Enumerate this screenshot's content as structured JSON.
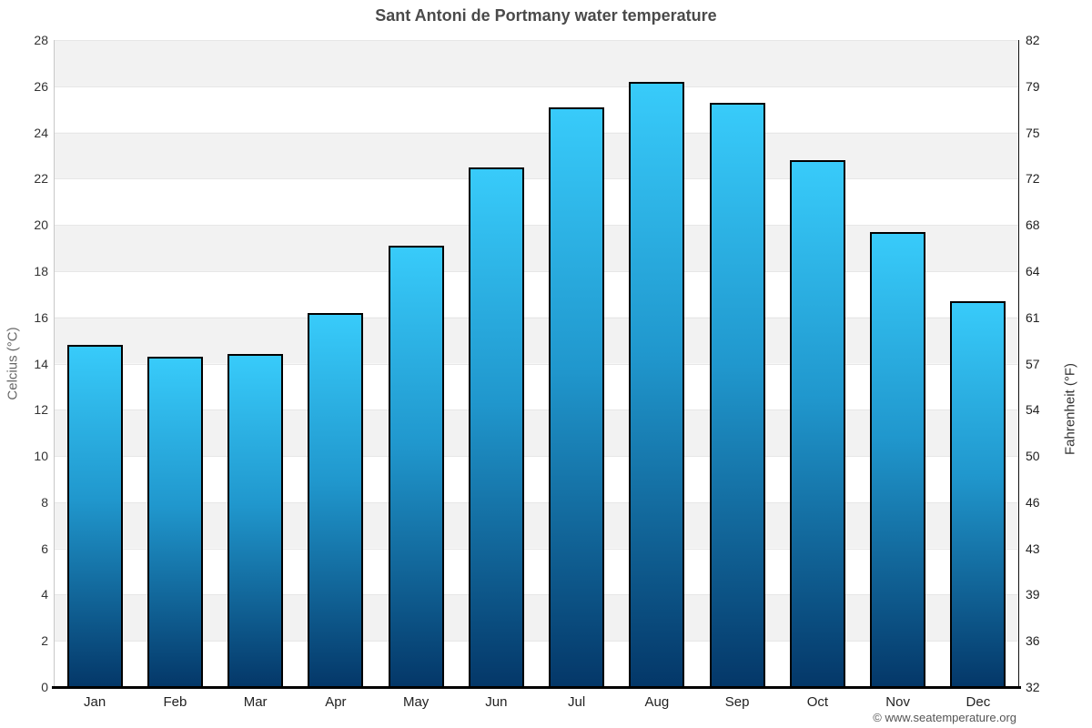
{
  "title": "Sant Antoni de Portmany water temperature",
  "footer": "© www.seatemperature.org",
  "chart_data": {
    "type": "bar",
    "title": "Sant Antoni de Portmany water temperature",
    "categories": [
      "Jan",
      "Feb",
      "Mar",
      "Apr",
      "May",
      "Jun",
      "Jul",
      "Aug",
      "Sep",
      "Oct",
      "Nov",
      "Dec"
    ],
    "values": [
      14.8,
      14.3,
      14.4,
      16.2,
      19.1,
      22.5,
      25.1,
      26.2,
      25.3,
      22.8,
      19.7,
      16.7
    ],
    "unit": "°C",
    "ylabel_left": "Celcius (°C)",
    "ylabel_right": "Fahrenheit (°F)",
    "ylim_celsius": [
      0,
      28
    ],
    "yticks_celsius": [
      0,
      2,
      4,
      6,
      8,
      10,
      12,
      14,
      16,
      18,
      20,
      22,
      24,
      26,
      28
    ],
    "yticks_fahrenheit": [
      32,
      36,
      39,
      43,
      46,
      50,
      54,
      57,
      61,
      64,
      68,
      72,
      75,
      79,
      82
    ],
    "legend": "none",
    "grid": "alternating horizontal bands every 2°C, light gray / white",
    "colors": {
      "bar_gradient_top": "#38cbfa",
      "bar_gradient_bottom": "#043768",
      "bar_border": "#000000",
      "band_gray": "#f2f2f2",
      "band_white": "#ffffff",
      "axis_bottom": "#000000",
      "title_color": "#4a4a4a",
      "tick_color": "#333333",
      "footer_color": "#555555"
    }
  }
}
